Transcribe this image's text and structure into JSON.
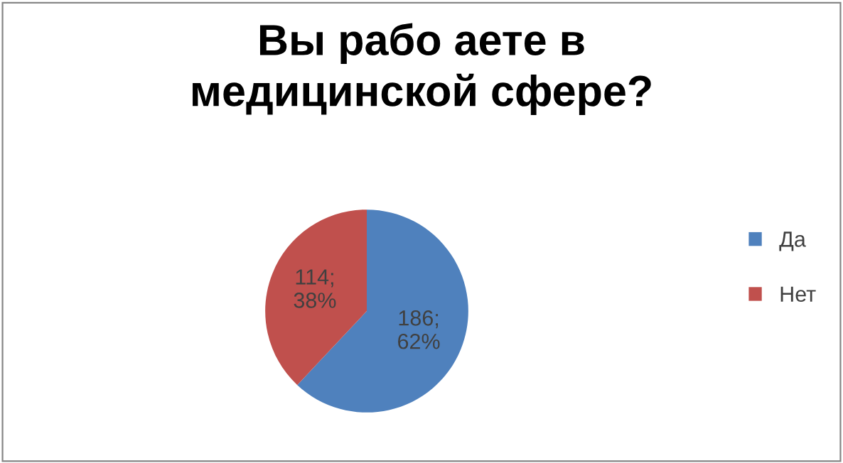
{
  "chart_data": {
    "type": "pie",
    "title": "Вы рабо аете в\nмедицинской сфере?",
    "categories": [
      "Да",
      "Нет"
    ],
    "values": [
      186,
      114
    ],
    "colors": [
      "#4f81bd",
      "#c0504d"
    ],
    "value_labels": [
      "186;\n62%",
      "114;\n38%"
    ],
    "legend": "right"
  }
}
